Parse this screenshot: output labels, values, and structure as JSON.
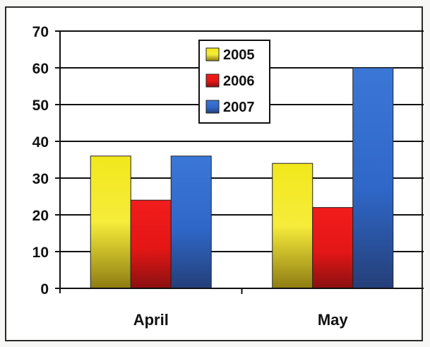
{
  "chart_data": {
    "type": "bar",
    "title": "",
    "xlabel": "",
    "ylabel": "",
    "categories": [
      "April",
      "May"
    ],
    "series": [
      {
        "name": "2005",
        "values": [
          36,
          34
        ],
        "color": "#e8d81a"
      },
      {
        "name": "2006",
        "values": [
          24,
          22
        ],
        "color": "#e01818"
      },
      {
        "name": "2007",
        "values": [
          36,
          60
        ],
        "color": "#2f67c8"
      }
    ],
    "ylim": [
      0,
      70
    ],
    "yticks": [
      "0",
      "10",
      "20",
      "30",
      "40",
      "50",
      "60",
      "70"
    ],
    "grid": true,
    "legend_position": "top-center"
  }
}
